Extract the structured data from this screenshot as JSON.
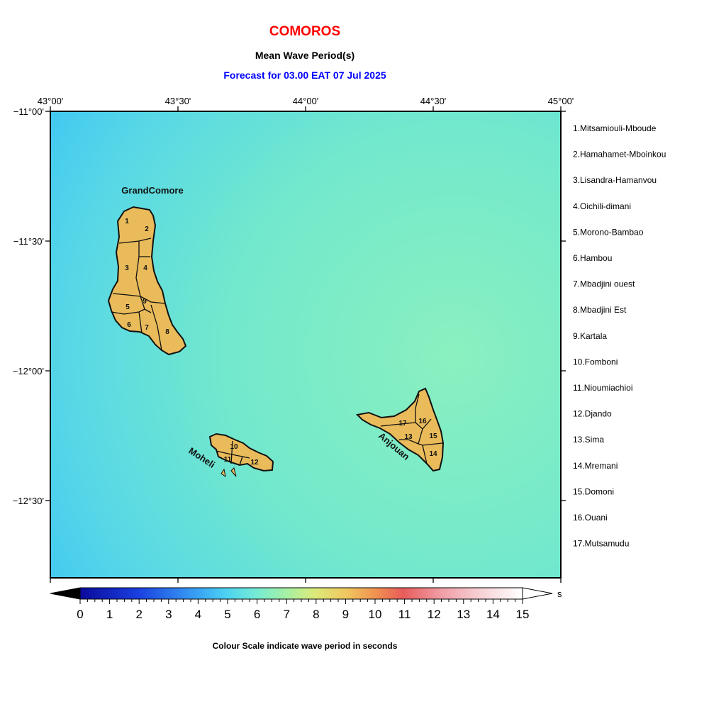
{
  "header": {
    "title": "COMOROS",
    "subtitle": "Mean Wave Period(s)",
    "forecast": "Forecast for  03.00 EAT 07 Jul 2025"
  },
  "axes": {
    "lon_labels": [
      "43°00'",
      "43°30'",
      "44°00'",
      "44°30'",
      "45°00'"
    ],
    "lat_labels": [
      "−11°00'",
      "−11°30'",
      "−12°00'",
      "−12°30'"
    ],
    "lon_range": [
      43.0,
      45.0
    ],
    "lat_range": [
      -12.8,
      -11.0
    ]
  },
  "islands": [
    {
      "name": "GrandComore"
    },
    {
      "name": "Moheli"
    },
    {
      "name": "Anjouan"
    }
  ],
  "districts": [
    "1.Mitsamiouli-Mboude",
    "2.Hamahamet-Mboinkou",
    "3.Lisandra-Hamanvou",
    "4.Oichili-dimani",
    "5.Morono-Bambao",
    "6.Hambou",
    "7.Mbadjini ouest",
    "8.Mbadjini Est",
    "9.Kartala",
    "10.Fomboni",
    "11.Nioumiachioi",
    "12.Djando",
    "13.Sima",
    "14.Mremani",
    "15.Domoni",
    "16.Ouani",
    "17.Mutsamudu"
  ],
  "district_numbers": [
    "1",
    "2",
    "3",
    "4",
    "5",
    "6",
    "7",
    "8",
    "9",
    "10",
    "11",
    "12",
    "13",
    "14",
    "15",
    "16",
    "17"
  ],
  "colorbar": {
    "ticks": [
      "0",
      "1",
      "2",
      "3",
      "4",
      "5",
      "6",
      "7",
      "8",
      "9",
      "10",
      "11",
      "12",
      "13",
      "14",
      "15"
    ],
    "unit": "s",
    "range": [
      0,
      15
    ],
    "caption": "Colour Scale indicate wave period in seconds"
  },
  "colors": {
    "land": "#e9bb5a",
    "sea_light": "#8af0c0",
    "sea_mid": "#62e0de",
    "sea_dark": "#38c2f7"
  }
}
